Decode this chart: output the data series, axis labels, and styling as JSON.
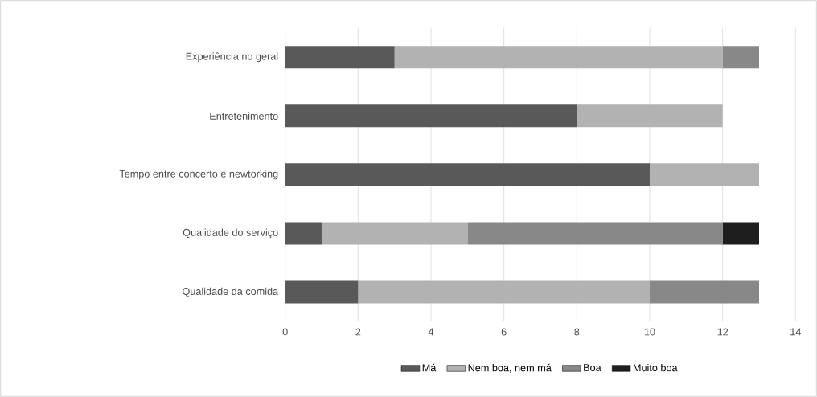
{
  "chart_data": {
    "type": "bar",
    "orientation": "horizontal",
    "stacked": true,
    "categories": [
      "Experiência no geral",
      "Entretenimento",
      "Tempo entre concerto e newtorking",
      "Qualidade do serviço",
      "Qualidade da comida"
    ],
    "series": [
      {
        "name": "Má",
        "color": "#595959",
        "values": [
          3,
          8,
          10,
          1,
          2
        ]
      },
      {
        "name": "Nem boa, nem má",
        "color": "#b2b2b2",
        "values": [
          9,
          4,
          3,
          4,
          8
        ]
      },
      {
        "name": "Boa",
        "color": "#888888",
        "values": [
          1,
          null,
          null,
          7,
          3
        ]
      },
      {
        "name": "Muito boa",
        "color": "#1e1e1e",
        "values": [
          null,
          null,
          null,
          1,
          null
        ]
      }
    ],
    "xlim": [
      0,
      14
    ],
    "xticks": [
      0,
      2,
      4,
      6,
      8,
      10,
      12,
      14
    ],
    "grid": "x",
    "legend": "bottom"
  }
}
